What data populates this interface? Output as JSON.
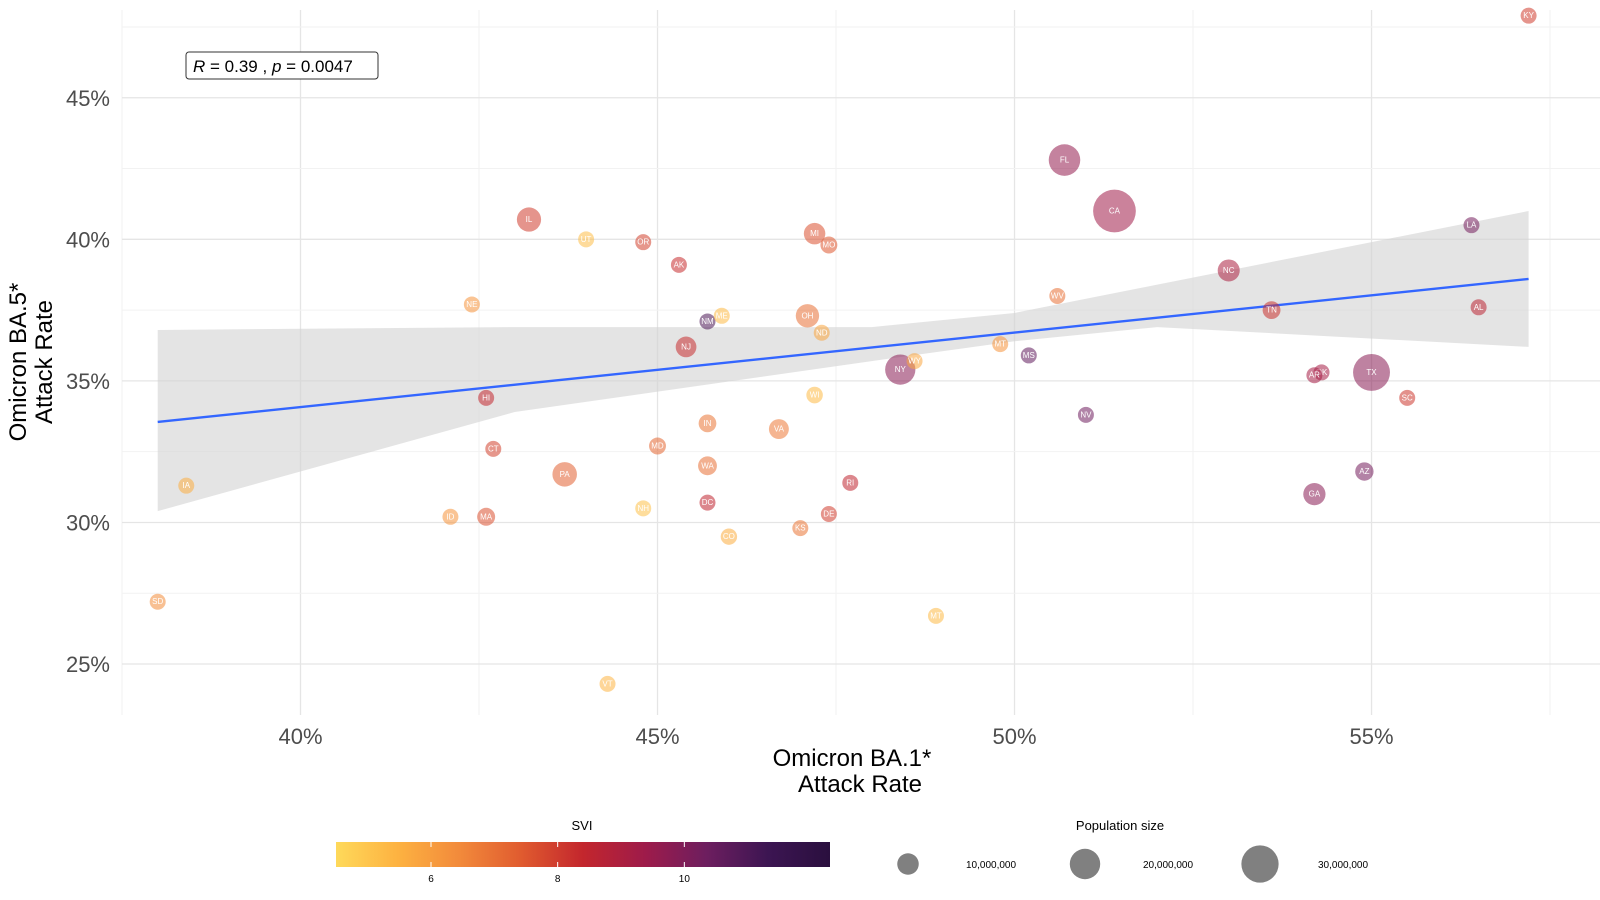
{
  "chart_data": {
    "type": "scatter",
    "xlabel": [
      "Omicron BA.1*",
      "Attack Rate"
    ],
    "ylabel": [
      "Omicron BA.5*",
      "Attack Rate"
    ],
    "xlim": [
      0.375,
      0.582
    ],
    "ylim": [
      0.232,
      0.481
    ],
    "x_ticks": [
      0.4,
      0.45,
      0.5,
      0.55
    ],
    "y_ticks": [
      0.25,
      0.3,
      0.35,
      0.4,
      0.45
    ],
    "x_tick_labels": [
      "40%",
      "45%",
      "50%",
      "55%"
    ],
    "y_tick_labels": [
      "25%",
      "30%",
      "35%",
      "40%",
      "45%"
    ],
    "grid": true,
    "annotation": {
      "r_label": "R",
      "r_value": "0.39",
      "separator": ",",
      "p_label": "p",
      "p_value": "0.0047"
    },
    "trend_line": {
      "x_start": 0.38,
      "x_end": 0.572,
      "y_start": 0.3355,
      "y_end": 0.386
    },
    "confidence_band": {
      "x": [
        0.38,
        0.43,
        0.48,
        0.5,
        0.52,
        0.572
      ],
      "lower": [
        0.304,
        0.339,
        0.357,
        0.364,
        0.369,
        0.362
      ],
      "upper": [
        0.368,
        0.369,
        0.369,
        0.374,
        0.384,
        0.41
      ]
    },
    "points": [
      {
        "state": "KY",
        "x": 0.572,
        "y": 0.479,
        "svi": 8.0,
        "pop": 4500000
      },
      {
        "state": "FL",
        "x": 0.507,
        "y": 0.428,
        "svi": 9.6,
        "pop": 21500000
      },
      {
        "state": "CA",
        "x": 0.514,
        "y": 0.41,
        "svi": 9.3,
        "pop": 39500000
      },
      {
        "state": "IL",
        "x": 0.432,
        "y": 0.407,
        "svi": 8.0,
        "pop": 12700000
      },
      {
        "state": "LA",
        "x": 0.564,
        "y": 0.405,
        "svi": 10.2,
        "pop": 4600000
      },
      {
        "state": "MI",
        "x": 0.472,
        "y": 0.402,
        "svi": 7.6,
        "pop": 10000000
      },
      {
        "state": "UT",
        "x": 0.44,
        "y": 0.4,
        "svi": 5.2,
        "pop": 3300000
      },
      {
        "state": "OR",
        "x": 0.448,
        "y": 0.399,
        "svi": 7.9,
        "pop": 4200000
      },
      {
        "state": "MO",
        "x": 0.474,
        "y": 0.398,
        "svi": 7.5,
        "pop": 6200000
      },
      {
        "state": "AK",
        "x": 0.453,
        "y": 0.391,
        "svi": 8.3,
        "pop": 730000
      },
      {
        "state": "NC",
        "x": 0.53,
        "y": 0.389,
        "svi": 9.0,
        "pop": 10500000
      },
      {
        "state": "WV",
        "x": 0.506,
        "y": 0.38,
        "svi": 7.0,
        "pop": 1800000
      },
      {
        "state": "NE",
        "x": 0.424,
        "y": 0.377,
        "svi": 6.2,
        "pop": 1960000
      },
      {
        "state": "AL",
        "x": 0.565,
        "y": 0.376,
        "svi": 8.6,
        "pop": 5000000
      },
      {
        "state": "TN",
        "x": 0.536,
        "y": 0.375,
        "svi": 8.2,
        "pop": 6900000
      },
      {
        "state": "ME",
        "x": 0.459,
        "y": 0.373,
        "svi": 5.3,
        "pop": 1360000
      },
      {
        "state": "OH",
        "x": 0.471,
        "y": 0.373,
        "svi": 7.0,
        "pop": 11800000
      },
      {
        "state": "NM",
        "x": 0.457,
        "y": 0.371,
        "svi": 11.0,
        "pop": 2100000
      },
      {
        "state": "ND",
        "x": 0.473,
        "y": 0.367,
        "svi": 5.8,
        "pop": 780000
      },
      {
        "state": "MT",
        "x": 0.498,
        "y": 0.363,
        "svi": 6.2,
        "pop": 1100000
      },
      {
        "state": "NJ",
        "x": 0.454,
        "y": 0.362,
        "svi": 8.3,
        "pop": 9300000
      },
      {
        "state": "MS",
        "x": 0.502,
        "y": 0.359,
        "svi": 10.6,
        "pop": 2950000
      },
      {
        "state": "WY",
        "x": 0.486,
        "y": 0.357,
        "svi": 5.8,
        "pop": 580000
      },
      {
        "state": "NY",
        "x": 0.484,
        "y": 0.354,
        "svi": 9.8,
        "pop": 19800000
      },
      {
        "state": "TX",
        "x": 0.55,
        "y": 0.353,
        "svi": 9.8,
        "pop": 29500000
      },
      {
        "state": "OK",
        "x": 0.543,
        "y": 0.353,
        "svi": 9.2,
        "pop": 3960000
      },
      {
        "state": "AR",
        "x": 0.542,
        "y": 0.352,
        "svi": 9.2,
        "pop": 3000000
      },
      {
        "state": "WI",
        "x": 0.472,
        "y": 0.345,
        "svi": 5.3,
        "pop": 5900000
      },
      {
        "state": "HI",
        "x": 0.426,
        "y": 0.344,
        "svi": 8.4,
        "pop": 1450000
      },
      {
        "state": "SC",
        "x": 0.555,
        "y": 0.344,
        "svi": 8.1,
        "pop": 5100000
      },
      {
        "state": "NV",
        "x": 0.51,
        "y": 0.338,
        "svi": 10.3,
        "pop": 3100000
      },
      {
        "state": "IN",
        "x": 0.457,
        "y": 0.335,
        "svi": 6.9,
        "pop": 6800000
      },
      {
        "state": "VA",
        "x": 0.467,
        "y": 0.333,
        "svi": 6.8,
        "pop": 8600000
      },
      {
        "state": "MD",
        "x": 0.45,
        "y": 0.327,
        "svi": 7.2,
        "pop": 6200000
      },
      {
        "state": "CT",
        "x": 0.427,
        "y": 0.326,
        "svi": 7.9,
        "pop": 3600000
      },
      {
        "state": "WA",
        "x": 0.457,
        "y": 0.32,
        "svi": 7.0,
        "pop": 7700000
      },
      {
        "state": "PA",
        "x": 0.437,
        "y": 0.317,
        "svi": 7.3,
        "pop": 13000000
      },
      {
        "state": "AZ",
        "x": 0.549,
        "y": 0.318,
        "svi": 10.2,
        "pop": 7300000
      },
      {
        "state": "RI",
        "x": 0.477,
        "y": 0.314,
        "svi": 8.5,
        "pop": 1100000
      },
      {
        "state": "IA",
        "x": 0.384,
        "y": 0.313,
        "svi": 5.6,
        "pop": 3190000
      },
      {
        "state": "GA",
        "x": 0.542,
        "y": 0.31,
        "svi": 9.8,
        "pop": 10700000
      },
      {
        "state": "DC",
        "x": 0.457,
        "y": 0.307,
        "svi": 8.5,
        "pop": 690000
      },
      {
        "state": "NH",
        "x": 0.448,
        "y": 0.305,
        "svi": 5.1,
        "pop": 1380000
      },
      {
        "state": "DE",
        "x": 0.474,
        "y": 0.303,
        "svi": 8.0,
        "pop": 1000000
      },
      {
        "state": "ID",
        "x": 0.421,
        "y": 0.302,
        "svi": 6.2,
        "pop": 1900000
      },
      {
        "state": "MA",
        "x": 0.426,
        "y": 0.302,
        "svi": 7.6,
        "pop": 7000000
      },
      {
        "state": "KS",
        "x": 0.47,
        "y": 0.298,
        "svi": 6.9,
        "pop": 2940000
      },
      {
        "state": "CO",
        "x": 0.46,
        "y": 0.295,
        "svi": 5.6,
        "pop": 5800000
      },
      {
        "state": "SD",
        "x": 0.38,
        "y": 0.272,
        "svi": 6.4,
        "pop": 890000
      },
      {
        "state": "MT",
        "x": 0.489,
        "y": 0.267,
        "svi": 5.3,
        "pop": 1100000
      },
      {
        "state": "VT",
        "x": 0.443,
        "y": 0.243,
        "svi": 5.4,
        "pop": 640000
      }
    ],
    "color_legend": {
      "title": "SVI",
      "min": 4.5,
      "max": 12.3,
      "ticks": [
        6,
        8,
        10
      ],
      "tick_labels": [
        "6",
        "8",
        "10"
      ],
      "stops": [
        "#fed95a",
        "#fdb241",
        "#f28a3b",
        "#e05b2f",
        "#c3262d",
        "#9e1b4a",
        "#6d1e5f",
        "#3c1552",
        "#2a0f3e"
      ]
    },
    "size_legend": {
      "title": "Population size",
      "values": [
        10000000,
        20000000,
        30000000
      ],
      "labels": [
        "10,000,000",
        "20,000,000",
        "30,000,000"
      ]
    },
    "colors": {
      "trend_line": "#3366ff",
      "band": "#d2d2d2",
      "legend_point": "#555555"
    }
  }
}
